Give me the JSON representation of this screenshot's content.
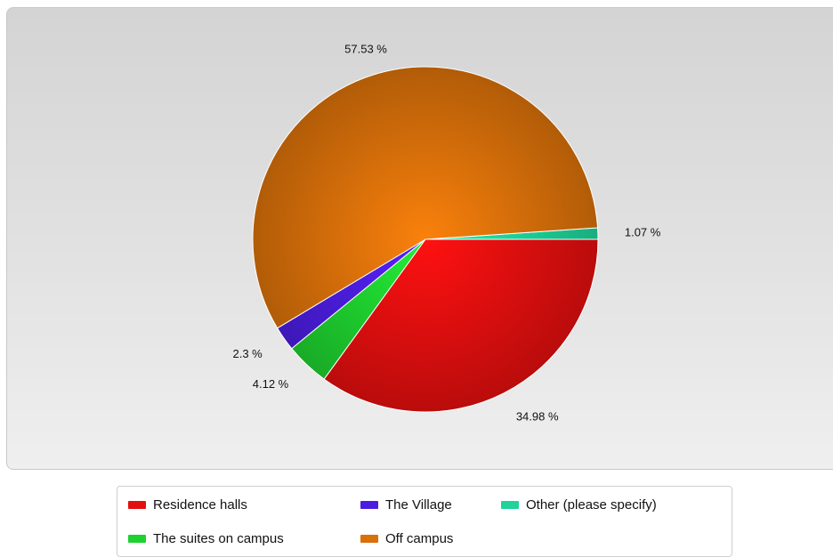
{
  "chart_data": {
    "type": "pie",
    "title": "",
    "slices": [
      {
        "label": "Other (please specify)",
        "value": 1.07,
        "display": "1.07 %",
        "color": "#1fd39a"
      },
      {
        "label": "Residence halls",
        "value": 34.98,
        "display": "34.98 %",
        "color": "#e30f0f"
      },
      {
        "label": "The suites on campus",
        "value": 4.12,
        "display": "4.12 %",
        "color": "#1ed12f"
      },
      {
        "label": "The Village",
        "value": 2.3,
        "display": "2.3 %",
        "color": "#4c1de0"
      },
      {
        "label": "Off campus",
        "value": 57.53,
        "display": "57.53 %",
        "color": "#d9700a"
      }
    ],
    "legend": {
      "placement": "bottom",
      "entries": [
        {
          "label": "Residence halls",
          "color": "#e30f0f"
        },
        {
          "label": "The Village",
          "color": "#4c1de0"
        },
        {
          "label": "Other (please specify)",
          "color": "#1fd39a"
        },
        {
          "label": "The suites on campus",
          "color": "#1ed12f"
        },
        {
          "label": "Off campus",
          "color": "#d9700a"
        }
      ]
    }
  }
}
